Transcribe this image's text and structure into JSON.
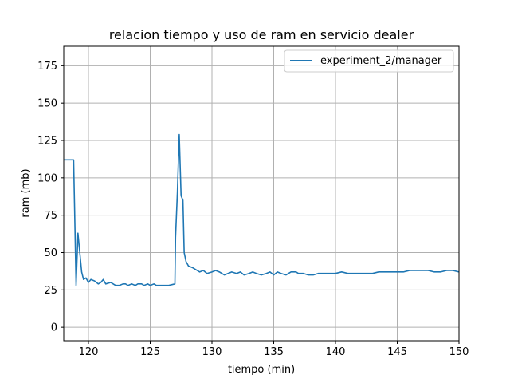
{
  "chart_data": {
    "type": "line",
    "title": "relacion tiempo y uso de ram en servicio dealer",
    "xlabel": "tiempo (min)",
    "ylabel": "ram (mb)",
    "xlim": [
      118,
      150
    ],
    "ylim": [
      -9,
      188
    ],
    "xticks": [
      120,
      125,
      130,
      135,
      140,
      145,
      150
    ],
    "yticks": [
      0,
      25,
      50,
      75,
      100,
      125,
      150,
      175
    ],
    "grid": true,
    "legend_position": "top-right",
    "series": [
      {
        "name": "experiment_2/manager",
        "color": "#1f77b4",
        "points": [
          [
            118.0,
            112
          ],
          [
            118.8,
            112
          ],
          [
            119.0,
            28
          ],
          [
            119.15,
            63
          ],
          [
            119.3,
            50
          ],
          [
            119.45,
            37
          ],
          [
            119.6,
            32
          ],
          [
            119.8,
            33
          ],
          [
            120.0,
            30
          ],
          [
            120.2,
            32
          ],
          [
            120.5,
            31
          ],
          [
            120.8,
            29
          ],
          [
            121.0,
            30
          ],
          [
            121.2,
            32
          ],
          [
            121.4,
            29
          ],
          [
            121.8,
            30
          ],
          [
            122.0,
            29
          ],
          [
            122.2,
            28
          ],
          [
            122.5,
            28
          ],
          [
            122.8,
            29
          ],
          [
            123.0,
            29
          ],
          [
            123.2,
            28
          ],
          [
            123.5,
            29
          ],
          [
            123.8,
            28
          ],
          [
            124.0,
            29
          ],
          [
            124.3,
            29
          ],
          [
            124.5,
            28
          ],
          [
            124.8,
            29
          ],
          [
            125.0,
            28
          ],
          [
            125.3,
            29
          ],
          [
            125.5,
            28
          ],
          [
            126.0,
            28
          ],
          [
            126.5,
            28
          ],
          [
            127.0,
            29
          ],
          [
            127.05,
            60
          ],
          [
            127.2,
            90
          ],
          [
            127.35,
            129
          ],
          [
            127.5,
            88
          ],
          [
            127.65,
            85
          ],
          [
            127.75,
            50
          ],
          [
            127.9,
            44
          ],
          [
            128.1,
            41
          ],
          [
            128.4,
            40
          ],
          [
            128.8,
            38
          ],
          [
            129.0,
            37
          ],
          [
            129.3,
            38
          ],
          [
            129.6,
            36
          ],
          [
            130.0,
            37
          ],
          [
            130.3,
            38
          ],
          [
            130.6,
            37
          ],
          [
            131.0,
            35
          ],
          [
            131.3,
            36
          ],
          [
            131.6,
            37
          ],
          [
            132.0,
            36
          ],
          [
            132.3,
            37
          ],
          [
            132.6,
            35
          ],
          [
            133.0,
            36
          ],
          [
            133.3,
            37
          ],
          [
            133.6,
            36
          ],
          [
            134.0,
            35
          ],
          [
            134.4,
            36
          ],
          [
            134.7,
            37
          ],
          [
            135.0,
            35
          ],
          [
            135.3,
            37
          ],
          [
            135.6,
            36
          ],
          [
            136.0,
            35
          ],
          [
            136.4,
            37
          ],
          [
            136.8,
            37
          ],
          [
            137.0,
            36
          ],
          [
            137.4,
            36
          ],
          [
            137.8,
            35
          ],
          [
            138.2,
            35
          ],
          [
            138.6,
            36
          ],
          [
            139.0,
            36
          ],
          [
            139.5,
            36
          ],
          [
            140.0,
            36
          ],
          [
            140.5,
            37
          ],
          [
            141.0,
            36
          ],
          [
            141.5,
            36
          ],
          [
            142.0,
            36
          ],
          [
            142.5,
            36
          ],
          [
            143.0,
            36
          ],
          [
            143.5,
            37
          ],
          [
            144.0,
            37
          ],
          [
            144.5,
            37
          ],
          [
            145.0,
            37
          ],
          [
            145.5,
            37
          ],
          [
            146.0,
            38
          ],
          [
            146.5,
            38
          ],
          [
            147.0,
            38
          ],
          [
            147.5,
            38
          ],
          [
            148.0,
            37
          ],
          [
            148.5,
            37
          ],
          [
            149.0,
            38
          ],
          [
            149.5,
            38
          ],
          [
            150.0,
            37
          ]
        ]
      }
    ]
  }
}
